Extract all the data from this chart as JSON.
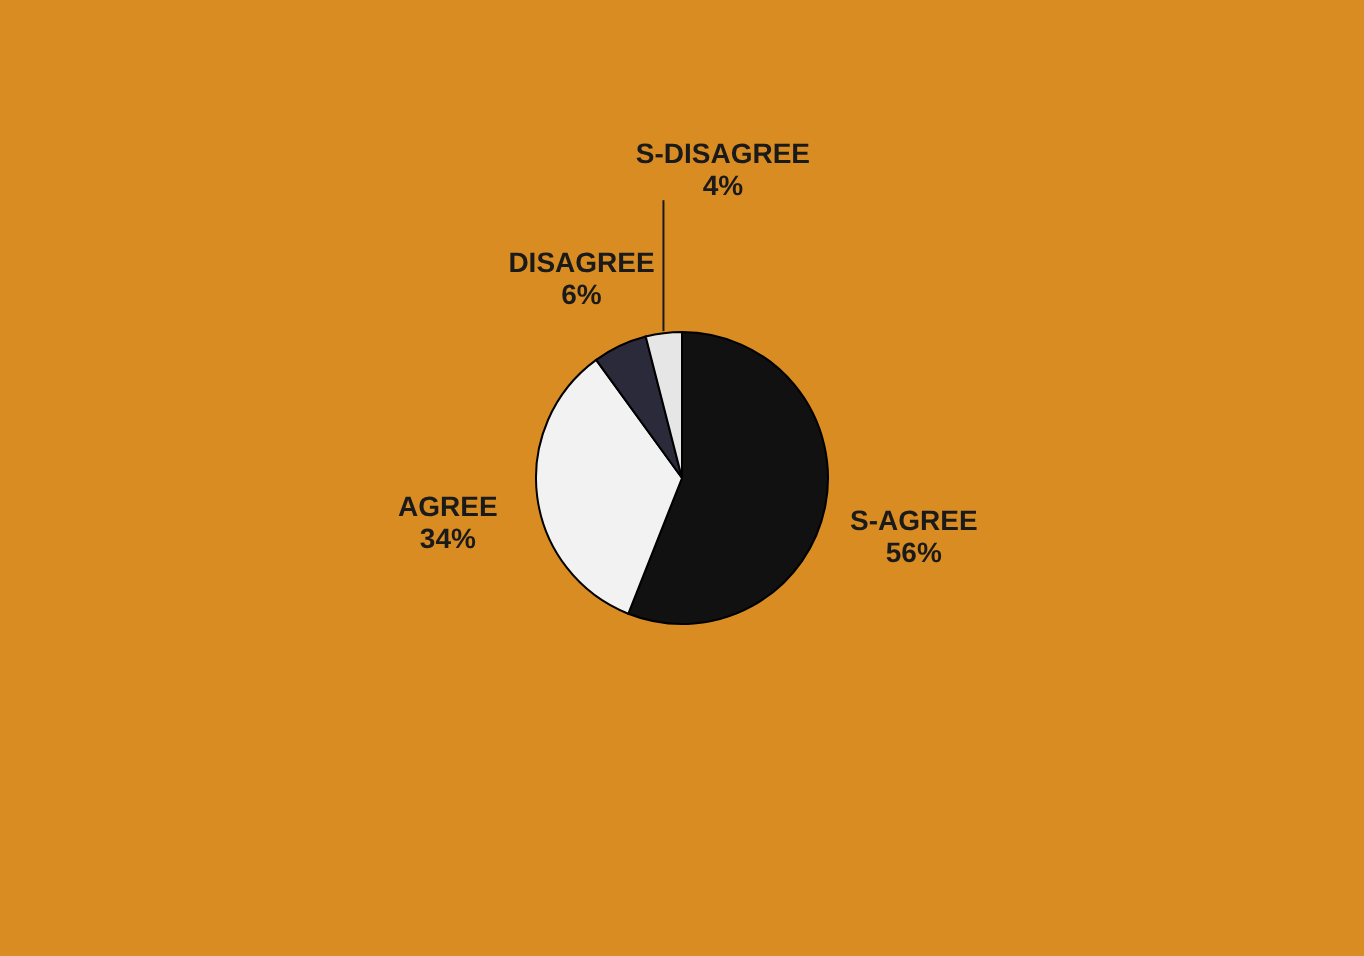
{
  "chart_data": {
    "type": "pie",
    "categories": [
      "S-AGREE",
      "AGREE",
      "DISAGREE",
      "S-DISAGREE"
    ],
    "values": [
      56,
      34,
      6,
      4
    ],
    "colors": [
      "#111111",
      "#f2f2f2",
      "#2a2a3a",
      "#e6e6e6"
    ],
    "value_labels": [
      "56%",
      "34%",
      "6%",
      "4%"
    ]
  }
}
